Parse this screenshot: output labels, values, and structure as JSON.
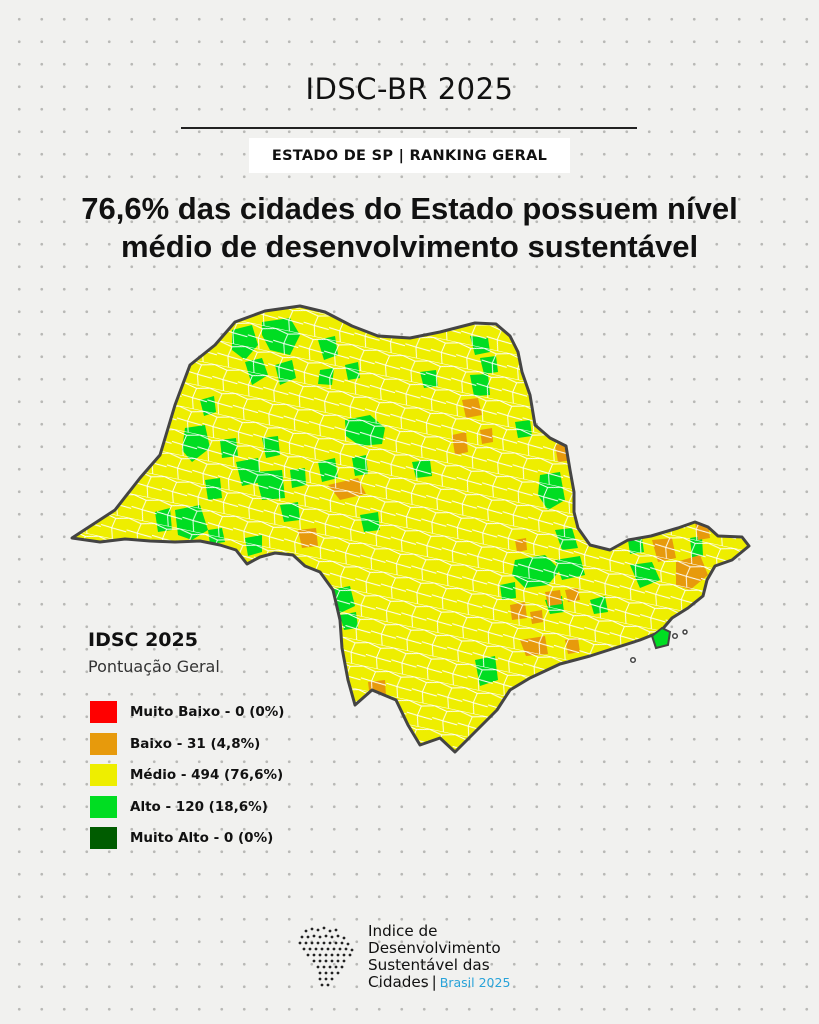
{
  "header": {
    "title": "IDSC-BR 2025",
    "subtitle": "ESTADO DE SP | RANKING GERAL"
  },
  "headline": {
    "line1": "76,6% das cidades do Estado possuem nível",
    "line2": "médio de desenvolvimento sustentável"
  },
  "legend": {
    "title": "IDSC 2025",
    "subtitle": "Pontuação Geral",
    "items": [
      {
        "label": "Muito Baixo - 0 (0%)",
        "color": "#ff0000"
      },
      {
        "label": "Baixo - 31 (4,8%)",
        "color": "#e79a0c"
      },
      {
        "label": "Médio - 494 (76,6%)",
        "color": "#eeee00"
      },
      {
        "label": "Alto - 120 (18,6%)",
        "color": "#00dd22"
      },
      {
        "label": "Muito Alto - 0 (0%)",
        "color": "#005c00"
      }
    ]
  },
  "map": {
    "region": "Estado de São Paulo",
    "category_counts": {
      "muito_baixo": 0,
      "baixo": 31,
      "medio": 494,
      "alto": 120,
      "muito_alto": 0
    },
    "colors": {
      "baixo": "#e79a0c",
      "medio": "#eeee00",
      "alto": "#00dd22",
      "border": "#ffffff",
      "outline": "#444444"
    }
  },
  "logo": {
    "line1": "Indice de",
    "line2": "Desenvolvimento",
    "line3": "Sustentável das",
    "line4": "Cidades",
    "separator": "|",
    "tag": "Brasil 2025"
  }
}
